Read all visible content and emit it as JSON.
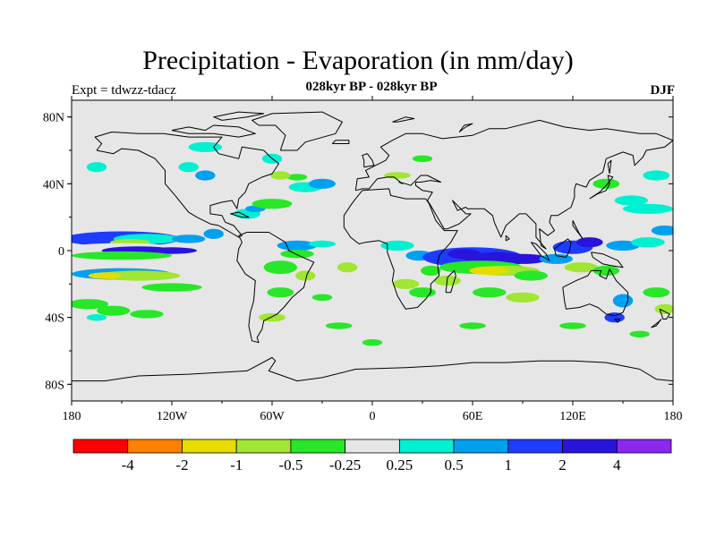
{
  "title": "Precipitation - Evaporation (in mm/day)",
  "subtitle": "028kyr BP - 028kyr BP",
  "experiment": "Expt = tdwzz-tdacz",
  "season": "DJF",
  "map": {
    "projection": "cylindrical-equidistant",
    "lon_range": [
      -180,
      180
    ],
    "lat_range": [
      -90,
      90
    ],
    "background_color": "#e6e6e6",
    "lat_ticks": [
      {
        "lat": 80,
        "label": "80N"
      },
      {
        "lat": 40,
        "label": "40N"
      },
      {
        "lat": 0,
        "label": "0"
      },
      {
        "lat": -40,
        "label": "40S"
      },
      {
        "lat": -80,
        "label": "80S"
      }
    ],
    "lon_ticks": [
      {
        "lon": -180,
        "label": "180"
      },
      {
        "lon": -120,
        "label": "120W"
      },
      {
        "lon": -60,
        "label": "60W"
      },
      {
        "lon": 0,
        "label": "0"
      },
      {
        "lon": 60,
        "label": "60E"
      },
      {
        "lon": 120,
        "label": "120E"
      },
      {
        "lon": 180,
        "label": "180"
      }
    ]
  },
  "colorbar": {
    "colors": [
      "#ff0000",
      "#ff8000",
      "#e6dc00",
      "#a0e632",
      "#28e628",
      "#e6e6e6",
      "#00f0d2",
      "#00a0f0",
      "#1e3cff",
      "#2814dc",
      "#8c28f0"
    ],
    "labels": [
      "-4",
      "-2",
      "-1",
      "-0.5",
      "-0.25",
      "0.25",
      "0.5",
      "1",
      "2",
      "4"
    ]
  }
}
